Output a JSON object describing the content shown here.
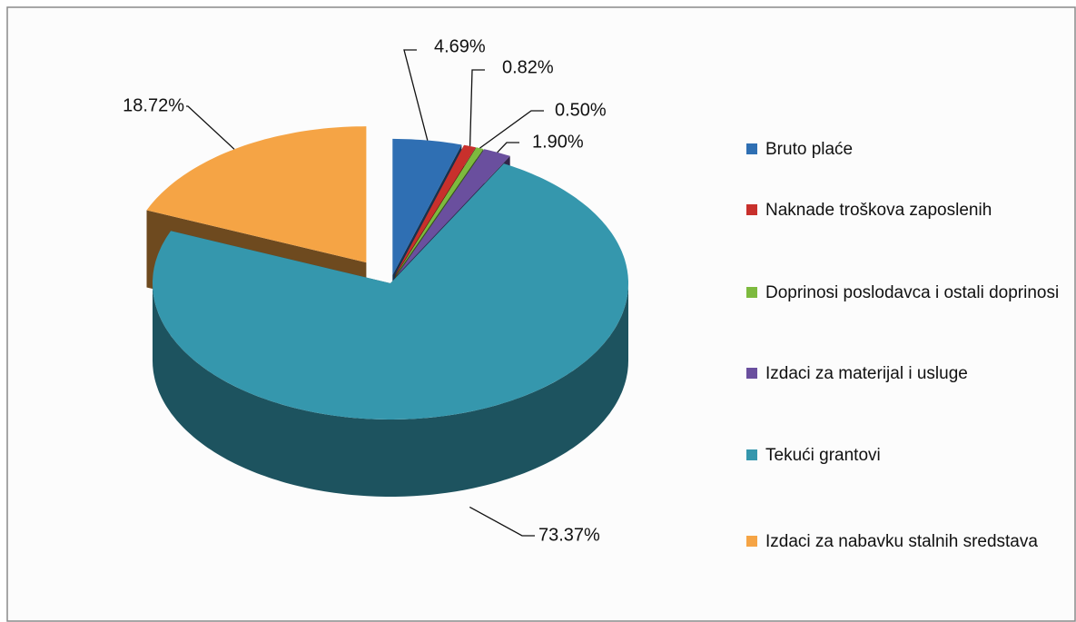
{
  "chart_data": {
    "type": "pie3d",
    "categories": [
      "Bruto plaće",
      "Naknade troškova zaposlenih",
      "Doprinosi poslodavca i ostali doprinosi",
      "Izdaci za materijal i usluge",
      "Tekući grantovi",
      "Izdaci za nabavku stalnih sredstava"
    ],
    "values": [
      4.69,
      0.82,
      0.5,
      1.9,
      73.37,
      18.72
    ],
    "value_labels": [
      "4.69%",
      "0.82%",
      "0.50%",
      "1.90%",
      "73.37%",
      "18.72%"
    ],
    "colors": [
      "#2f6fb3",
      "#c8302c",
      "#7dba3e",
      "#6a4f9e",
      "#3597ad",
      "#f5a445"
    ],
    "legend": "right"
  }
}
